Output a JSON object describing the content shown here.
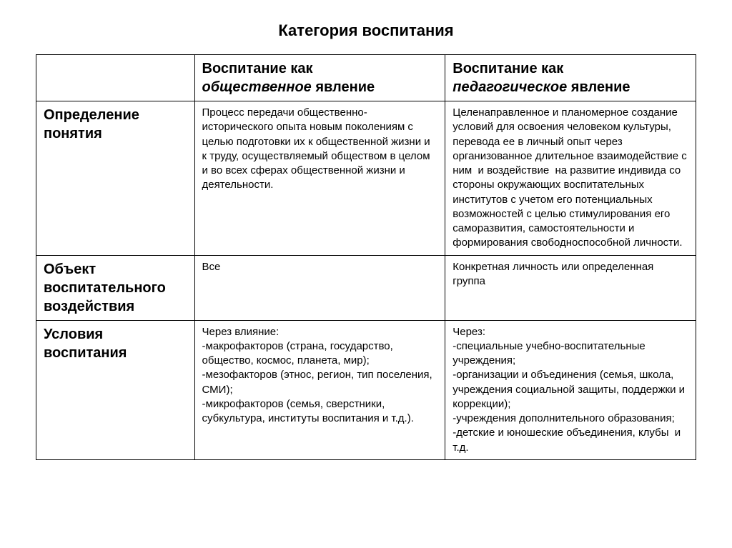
{
  "title": "Категория воспитания",
  "columns": {
    "a_prefix": "Воспитание как",
    "a_italic": "общественное",
    "a_suffix": " явление",
    "b_prefix": "Воспитание как",
    "b_italic": "педагогическое",
    "b_suffix": " явление"
  },
  "rows": [
    {
      "label": "Определение понятия",
      "a": "Процесс передачи общественно-исторического опыта новым поколениям с целью подготовки их к общественной жизни и к труду, осуществляемый обществом в целом и во всех сферах общественной жизни и деятельности.",
      "b": "Целенаправленное и планомерное создание условий для освоения человеком культуры, перевода ее в личный опыт через организованное длительное взаимодействие с ним  и воздействие  на развитие индивида со стороны окружающих воспитательных институтов с учетом его потенциальных возможностей с целью стимулирования его саморазвития, самостоятельности и формирования свободноспособной личности."
    },
    {
      "label": "Объект воспитательного воздействия",
      "a": "Все",
      "b": "Конкретная личность или определенная группа"
    },
    {
      "label": "Условия воспитания",
      "a": "Через влияние:\n-макрофакторов (страна, государство, общество, космос, планета, мир);\n-мезофакторов (этнос, регион, тип поселения, СМИ);\n-микрофакторов (семья, сверстники, субкультура, институты воспитания и т.д.).",
      "b": "Через:\n-специальные учебно-воспитательные учреждения;\n-организации и объединения (семья, школа, учреждения социальной защиты, поддержки и коррекции);\n-учреждения дополнительного образования;\n-детские и юношеские объединения, клубы  и т.д."
    }
  ]
}
